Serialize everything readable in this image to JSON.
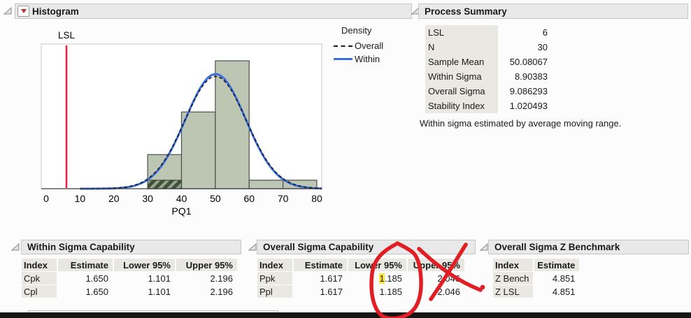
{
  "histogram": {
    "title": "Histogram",
    "legend": {
      "title": "Density",
      "items": [
        {
          "label": "Overall"
        },
        {
          "label": "Within"
        }
      ]
    }
  },
  "chart_data": {
    "type": "histogram",
    "xlabel": "PQ1",
    "x_ticks": [
      0,
      10,
      20,
      30,
      40,
      50,
      60,
      70,
      80
    ],
    "xlim": [
      -1.5,
      81.5
    ],
    "bins": {
      "starts": [
        30,
        40,
        50,
        60,
        70
      ],
      "width": 10,
      "counts": [
        4,
        9,
        15,
        1,
        1
      ]
    },
    "shaded_bin": {
      "start": 30,
      "end": 40,
      "count": 1
    },
    "lsl": {
      "value": 6,
      "label": "LSL"
    },
    "n": 30,
    "mean": 50.08067,
    "curves": [
      {
        "name": "Overall",
        "sigma": 9.086293,
        "style": "dashed",
        "color": "#161616"
      },
      {
        "name": "Within",
        "sigma": 8.90383,
        "style": "solid",
        "color": "#3a6fdd"
      }
    ],
    "colors": {
      "bar_fill": "#bdc6b3",
      "bar_stroke": "#4c514a",
      "hatch_fill": "#97a68c",
      "hatch_stripe": "#41503a",
      "lsl_line": "#e8234a",
      "frame": "#c6c6c6",
      "axis": "#3d3d3d"
    }
  },
  "process_summary": {
    "title": "Process Summary",
    "rows": [
      {
        "label": "LSL",
        "value": "6"
      },
      {
        "label": "N",
        "value": "30"
      },
      {
        "label": "Sample Mean",
        "value": "50.08067"
      },
      {
        "label": "Within Sigma",
        "value": "8.90383"
      },
      {
        "label": "Overall Sigma",
        "value": "9.086293"
      },
      {
        "label": "Stability Index",
        "value": "1.020493"
      }
    ],
    "note": "Within sigma estimated by average moving range."
  },
  "tables": {
    "within": {
      "title": "Within Sigma Capability",
      "columns": [
        "Index",
        "Estimate",
        "Lower 95%",
        "Upper 95%"
      ],
      "rows": [
        [
          "Cpk",
          "1.650",
          "1.101",
          "2.196"
        ],
        [
          "Cpl",
          "1.650",
          "1.101",
          "2.196"
        ]
      ]
    },
    "overall": {
      "title": "Overall Sigma Capability",
      "columns": [
        "Index",
        "Estimate",
        "Lower 95%",
        "Upper 95%"
      ],
      "rows": [
        [
          "Ppk",
          "1.617",
          "1.185",
          "2.046"
        ],
        [
          "Ppl",
          "1.617",
          "1.185",
          "2.046"
        ]
      ],
      "highlight": {
        "row": 0,
        "col": 2,
        "mode": "first-char",
        "color": "#ffe33e"
      }
    },
    "zbench": {
      "title": "Overall Sigma Z Benchmark",
      "columns": [
        "Index",
        "Estimate"
      ],
      "rows": [
        [
          "Z Bench",
          "4.851"
        ],
        [
          "Z LSL",
          "4.851"
        ]
      ]
    }
  },
  "annotation": {
    "color": "#e01e24"
  }
}
